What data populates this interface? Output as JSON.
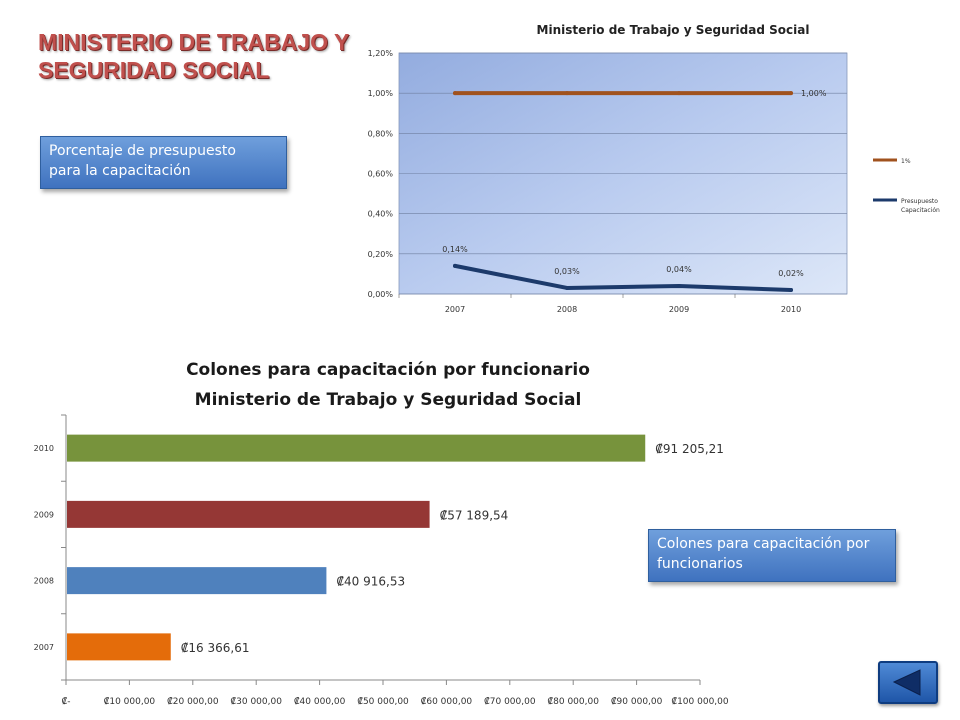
{
  "slide": {
    "title_lines": [
      "MINISTERIO DE TRABAJO Y",
      "SEGURIDAD SOCIAL"
    ],
    "callout_budget_lines": [
      "Porcentaje de presupuesto",
      "para la capacitación"
    ],
    "callout_colones_lines": [
      "Colones para capacitación por",
      "funcionarios"
    ],
    "back_button_icon": "back-triangle-icon"
  },
  "chart_data": [
    {
      "type": "line",
      "title": "Ministerio de Trabajo y Seguridad Social",
      "categories": [
        "2007",
        "2008",
        "2009",
        "2010"
      ],
      "ylim": [
        0,
        1.2
      ],
      "yticks": [
        "0,00%",
        "0,20%",
        "0,40%",
        "0,60%",
        "0,80%",
        "1,00%",
        "1,20%"
      ],
      "legend_position": "right",
      "series": [
        {
          "name": "1%",
          "values": [
            1.0,
            1.0,
            1.0,
            1.0
          ],
          "color": "#a0521e",
          "labels": [
            "",
            "",
            "",
            "1,00%"
          ]
        },
        {
          "name": "Presupuesto Capacitación",
          "values": [
            0.14,
            0.03,
            0.04,
            0.02
          ],
          "color": "#1c3a6b",
          "labels": [
            "0,14%",
            "0,03%",
            "0,04%",
            "0,02%"
          ]
        }
      ]
    },
    {
      "type": "bar",
      "orientation": "horizontal",
      "title_lines": [
        "Colones para capacitación por funcionario",
        "Ministerio de Trabajo y Seguridad Social"
      ],
      "categories": [
        "2007",
        "2008",
        "2009",
        "2010"
      ],
      "values": [
        16366.61,
        40916.53,
        57189.54,
        91205.21
      ],
      "value_labels": [
        "₡16 366,61",
        "₡40 916,53",
        "₡57 189,54",
        "₡91 205,21"
      ],
      "colors": [
        "#e46c0a",
        "#4f81bd",
        "#953735",
        "#77933c"
      ],
      "xlim": [
        0,
        100000
      ],
      "xticks": [
        "₡-",
        "₡10 000,00",
        "₡20 000,00",
        "₡30 000,00",
        "₡40 000,00",
        "₡50 000,00",
        "₡60 000,00",
        "₡70 000,00",
        "₡80 000,00",
        "₡90 000,00",
        "₡100 000,00"
      ]
    }
  ]
}
